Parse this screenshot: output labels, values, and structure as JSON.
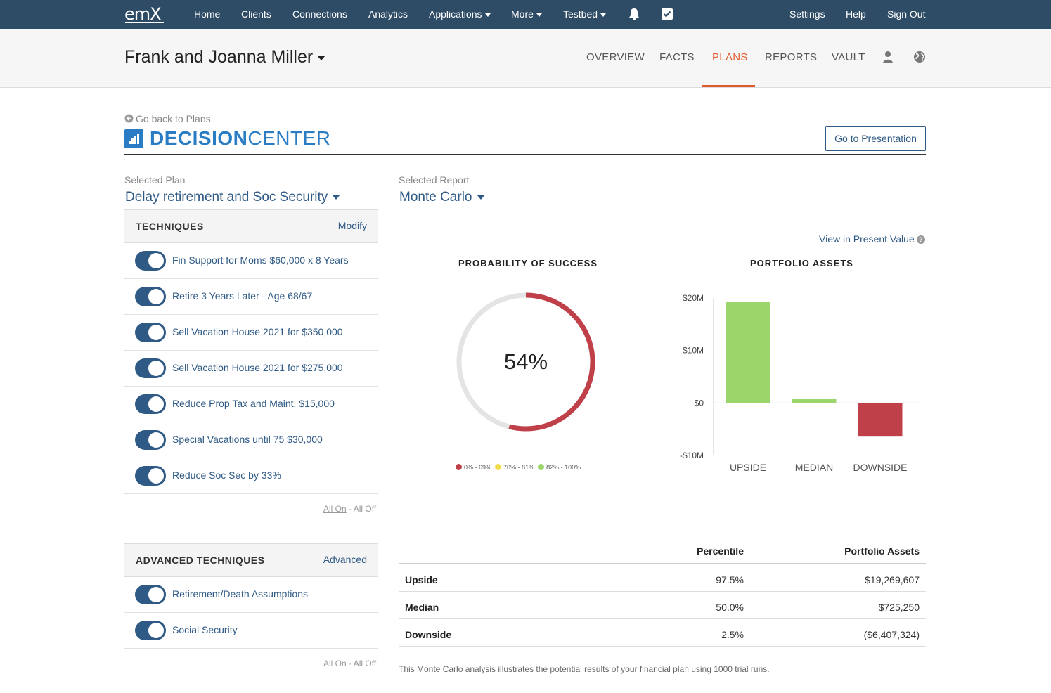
{
  "topnav": {
    "logo": "emX",
    "items": [
      "Home",
      "Clients",
      "Connections",
      "Analytics",
      "Applications",
      "More",
      "Testbed"
    ],
    "right_items": [
      "Settings",
      "Help",
      "Sign Out"
    ]
  },
  "client": {
    "name": "Frank and Joanna Miller",
    "tabs": [
      "OVERVIEW",
      "FACTS",
      "PLANS",
      "REPORTS",
      "VAULT"
    ],
    "active_tab": "PLANS"
  },
  "decision_center": {
    "back_link": "Go back to Plans",
    "title_bold": "DECISION",
    "title_light": "CENTER",
    "presentation_button": "Go to Presentation"
  },
  "selected_plan": {
    "label": "Selected Plan",
    "value": "Delay retirement and Soc Security"
  },
  "selected_report": {
    "label": "Selected Report",
    "value": "Monte Carlo"
  },
  "techniques": {
    "title": "TECHNIQUES",
    "action": "Modify",
    "items": [
      {
        "label": "Fin Support for Moms $60,000 x 8 Years",
        "on": true
      },
      {
        "label": "Retire 3 Years Later - Age 68/67",
        "on": true
      },
      {
        "label": "Sell Vacation House 2021 for $350,000",
        "on": true
      },
      {
        "label": "Sell Vacation House 2021 for $275,000",
        "on": true
      },
      {
        "label": "Reduce Prop Tax and Maint. $15,000",
        "on": true
      },
      {
        "label": "Special Vacations until 75 $30,000",
        "on": true
      },
      {
        "label": "Reduce Soc Sec by 33%",
        "on": true
      }
    ],
    "all_on": "All On",
    "sep": "·",
    "all_off": "All Off"
  },
  "advanced": {
    "title": "ADVANCED TECHNIQUES",
    "action": "Advanced",
    "items": [
      {
        "label": "Retirement/Death Assumptions",
        "on": true
      },
      {
        "label": "Social Security",
        "on": true
      }
    ],
    "all_on": "All On",
    "sep": "·",
    "all_off": "All Off"
  },
  "report": {
    "present_value_link": "View in Present Value",
    "present_value_help": "?",
    "probability": {
      "title": "PROBABILITY OF SUCCESS",
      "value_text": "54%",
      "fraction": 0.54,
      "ring_color": "#c0404a",
      "track_color": "#e4e4e4",
      "legend": [
        {
          "label": "0% - 69%",
          "color": "#c0404a"
        },
        {
          "label": "70% - 81%",
          "color": "#f2dc4c"
        },
        {
          "label": "82% - 100%",
          "color": "#9cd66a"
        }
      ]
    },
    "portfolio_title": "PORTFOLIO ASSETS",
    "footnote": "This Monte Carlo analysis illustrates the potential results of your financial plan using 1000 trial runs."
  },
  "chart_data": {
    "type": "bar",
    "title": "PORTFOLIO ASSETS",
    "categories": [
      "UPSIDE",
      "MEDIAN",
      "DOWNSIDE"
    ],
    "values": [
      19269607,
      725250,
      -6407324
    ],
    "colors": [
      "#9cd66a",
      "#9cd66a",
      "#c0404a"
    ],
    "yticks": [
      20000000,
      10000000,
      0,
      -10000000
    ],
    "ytick_labels": [
      "$20M",
      "$10M",
      "$0",
      "-$10M"
    ],
    "ylim": [
      -10000000,
      20000000
    ],
    "xlabel": "",
    "ylabel": "",
    "grid": false
  },
  "table": {
    "headers": [
      "Percentile",
      "Portfolio Assets"
    ],
    "rows": [
      {
        "name": "Upside",
        "percentile": "97.5%",
        "assets": "$19,269,607"
      },
      {
        "name": "Median",
        "percentile": "50.0%",
        "assets": "$725,250"
      },
      {
        "name": "Downside",
        "percentile": "2.5%",
        "assets": "($6,407,324)"
      }
    ]
  }
}
